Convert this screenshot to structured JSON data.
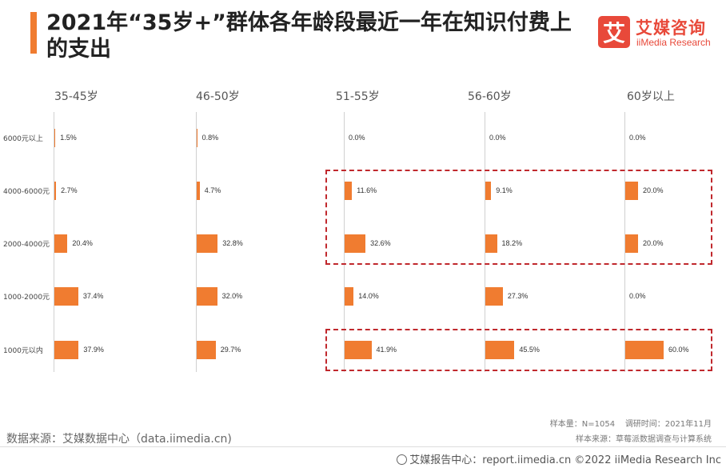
{
  "title": "2021年“35岁+”群体各年龄段最近一年在知识付费上的支出",
  "logo": {
    "mark": "艾",
    "name_cn": "艾媒咨询",
    "name_en": "iiMedia Research"
  },
  "chart_data": {
    "type": "bar",
    "orientation": "horizontal",
    "title": "2021年“35岁+”群体各年龄段最近一年在知识付费上的支出",
    "categories": [
      "6000元以上",
      "4000-6000元",
      "2000-4000元",
      "1000-2000元",
      "1000元以内"
    ],
    "panels": [
      {
        "name": "35-45岁",
        "values": [
          1.5,
          2.7,
          20.4,
          37.4,
          37.9
        ],
        "labels": [
          "1.5%",
          "2.7%",
          "20.4%",
          "37.4%",
          "37.9%"
        ]
      },
      {
        "name": "46-50岁",
        "values": [
          0.8,
          4.7,
          32.8,
          32.0,
          29.7
        ],
        "labels": [
          "0.8%",
          "4.7%",
          "32.8%",
          "32.0%",
          "29.7%"
        ]
      },
      {
        "name": "51-55岁",
        "values": [
          0.0,
          11.6,
          32.6,
          14.0,
          41.9
        ],
        "labels": [
          "0.0%",
          "11.6%",
          "32.6%",
          "14.0%",
          "41.9%"
        ]
      },
      {
        "name": "56-60岁",
        "values": [
          0.0,
          9.1,
          18.2,
          27.3,
          45.5
        ],
        "labels": [
          "0.0%",
          "9.1%",
          "18.2%",
          "27.3%",
          "45.5%"
        ]
      },
      {
        "name": "60岁以上",
        "values": [
          0.0,
          20.0,
          20.0,
          0.0,
          60.0
        ],
        "labels": [
          "0.0%",
          "20.0%",
          "20.0%",
          "0.0%",
          "60.0%"
        ]
      }
    ],
    "unit": "%",
    "bar_color": "#f07c30",
    "highlight_color": "#c0282d",
    "highlights": [
      {
        "panels": [
          "51-55岁",
          "56-60岁",
          "60岁以上"
        ],
        "categories": [
          "4000-6000元",
          "2000-4000元"
        ]
      },
      {
        "panels": [
          "51-55岁",
          "56-60岁",
          "60岁以上"
        ],
        "categories": [
          "1000元以内"
        ]
      }
    ]
  },
  "footnote": {
    "sample": "样本量：N=1054",
    "survey_time": "调研时间：2021年11月",
    "sample_source": "样本来源：草莓派数据调查与计算系统"
  },
  "source": "数据来源：艾媒数据中心（data.iimedia.cn)",
  "copyright": "艾媒报告中心：report.iimedia.cn  ©2022  iiMedia Research  Inc"
}
